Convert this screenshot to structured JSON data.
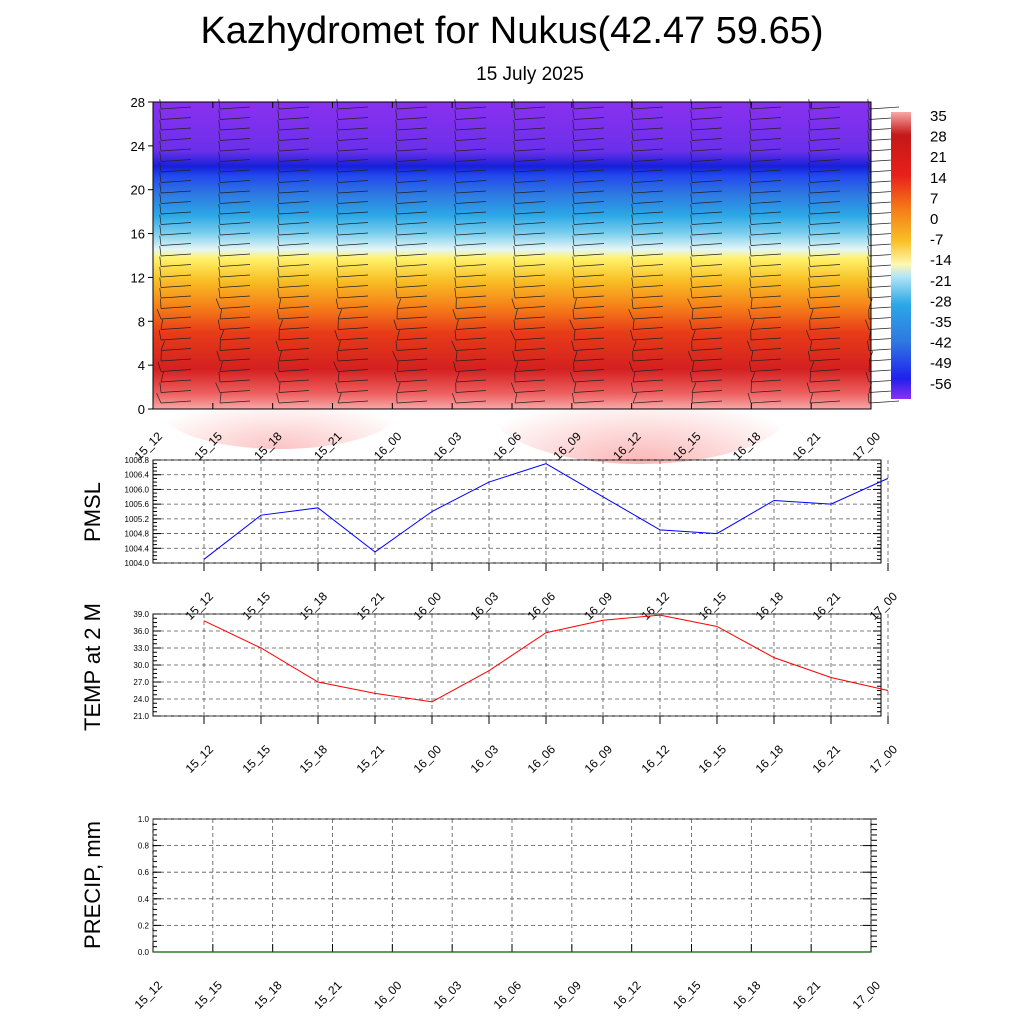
{
  "header": {
    "title": "Kazhydromet for Nukus(42.47 59.65)",
    "subtitle": "15 July 2025"
  },
  "time_labels": [
    "15_12",
    "15_15",
    "15_18",
    "15_21",
    "16_00",
    "16_03",
    "16_06",
    "16_09",
    "16_12",
    "16_15",
    "16_18",
    "16_21",
    "17_00"
  ],
  "colors": {
    "pmsl_line": "#0000ff",
    "temp_line": "#ff0000",
    "precip_line": "#006400",
    "grid": "#555555"
  },
  "chart_data": [
    {
      "type": "heatmap",
      "name": "temperature-wind cross section",
      "ylim": [
        0,
        28
      ],
      "yticks": [
        "0",
        "4",
        "8",
        "12",
        "16",
        "20",
        "24",
        "28"
      ],
      "x": [
        "15_12",
        "15_15",
        "15_18",
        "15_21",
        "16_00",
        "16_03",
        "16_06",
        "16_09",
        "16_12",
        "16_15",
        "16_18",
        "16_21",
        "17_00"
      ],
      "colorbar": {
        "labels": [
          "35",
          "28",
          "21",
          "14",
          "7",
          "0",
          "-7",
          "-14",
          "-21",
          "-28",
          "-35",
          "-42",
          "-49",
          "-56"
        ]
      }
    },
    {
      "type": "line",
      "ylabel": "PMSL",
      "x": [
        "15_12",
        "15_15",
        "15_18",
        "15_21",
        "16_00",
        "16_03",
        "16_06",
        "16_09",
        "16_12",
        "16_15",
        "16_18",
        "16_21",
        "17_00"
      ],
      "values": [
        1004.1,
        1005.3,
        1005.5,
        1004.3,
        1005.4,
        1006.2,
        1006.7,
        1005.8,
        1004.9,
        1004.8,
        1005.7,
        1005.6,
        1006.3
      ],
      "ylim": [
        1004.0,
        1006.8
      ],
      "yticks": [
        "1004.0",
        "1004.4",
        "1004.8",
        "1005.2",
        "1005.6",
        "1006.0",
        "1006.4",
        "1006.8"
      ],
      "grid": true
    },
    {
      "type": "line",
      "ylabel": "TEMP at 2 M",
      "x": [
        "15_12",
        "15_15",
        "15_18",
        "15_21",
        "16_00",
        "16_03",
        "16_06",
        "16_09",
        "16_12",
        "16_15",
        "16_18",
        "16_21",
        "17_00"
      ],
      "values": [
        37.8,
        33.0,
        27.0,
        25.0,
        23.5,
        29.0,
        35.7,
        37.9,
        38.8,
        36.8,
        31.3,
        27.8,
        25.5
      ],
      "ylim": [
        21.0,
        39.0
      ],
      "yticks": [
        "21.0",
        "24.0",
        "27.0",
        "30.0",
        "33.0",
        "36.0",
        "39.0"
      ],
      "grid": true
    },
    {
      "type": "line",
      "ylabel": "PRECIP, mm",
      "x": [
        "15_12",
        "15_15",
        "15_18",
        "15_21",
        "16_00",
        "16_03",
        "16_06",
        "16_09",
        "16_12",
        "16_15",
        "16_18",
        "16_21",
        "17_00"
      ],
      "values": [
        0,
        0,
        0,
        0,
        0,
        0,
        0,
        0,
        0,
        0,
        0,
        0,
        0
      ],
      "ylim": [
        0.0,
        1.0
      ],
      "yticks": [
        "0.0",
        "0.2",
        "0.4",
        "0.6",
        "0.8",
        "1.0"
      ],
      "grid": true
    }
  ]
}
